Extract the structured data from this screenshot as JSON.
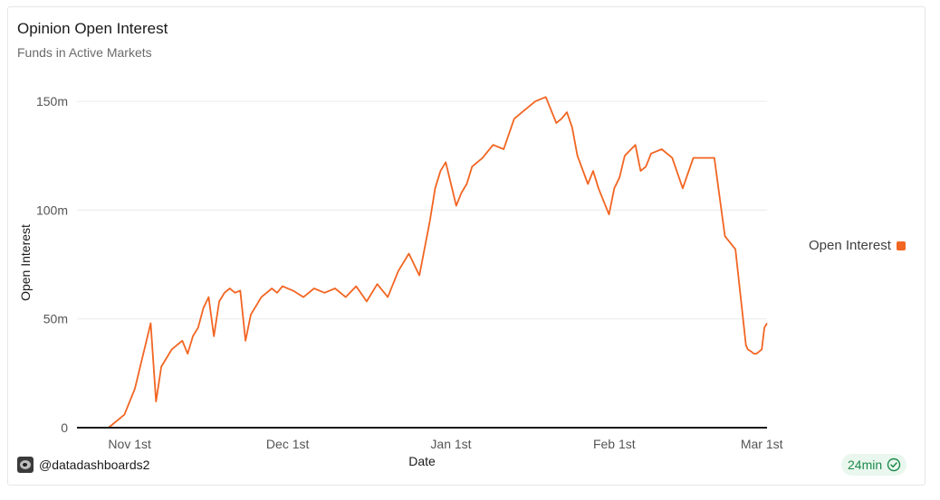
{
  "header": {
    "title": "Opinion Open Interest",
    "subtitle": "Funds in Active Markets"
  },
  "legend": {
    "label": "Open Interest",
    "color": "#f26522"
  },
  "footer": {
    "author": "@datadashboards2",
    "author_icon": "author-avatar-icon",
    "freshness": "24min",
    "freshness_icon": "check-circle-icon"
  },
  "colors": {
    "series": "#f26522",
    "grid": "#ececec",
    "axis": "#1a1a1a",
    "badge_bg": "#e9f7ee",
    "badge_text": "#1f8a4c"
  },
  "chart_data": {
    "type": "line",
    "xlabel": "Date",
    "ylabel": "Open Interest",
    "x_ticks": [
      {
        "label": "Nov 1st",
        "date": "2025-11-01"
      },
      {
        "label": "Dec 1st",
        "date": "2025-12-01"
      },
      {
        "label": "Jan 1st",
        "date": "2026-01-01"
      },
      {
        "label": "Feb 1st",
        "date": "2026-02-01"
      },
      {
        "label": "Mar 1st",
        "date": "2026-03-01"
      }
    ],
    "y_ticks": [
      {
        "label": "0",
        "value": 0
      },
      {
        "label": "50m",
        "value": 50
      },
      {
        "label": "100m",
        "value": 100
      },
      {
        "label": "150m",
        "value": 150
      }
    ],
    "xlim": [
      "2025-10-22",
      "2026-03-02"
    ],
    "ylim": [
      0,
      160
    ],
    "grid": true,
    "legend_position": "right",
    "series": [
      {
        "name": "Open Interest",
        "x": [
          "2025-10-22",
          "2025-10-24",
          "2025-10-26",
          "2025-10-28",
          "2025-10-30",
          "2025-10-31",
          "2025-11-02",
          "2025-11-03",
          "2025-11-04",
          "2025-11-05",
          "2025-11-06",
          "2025-11-07",
          "2025-11-08",
          "2025-11-09",
          "2025-11-10",
          "2025-11-11",
          "2025-11-12",
          "2025-11-13",
          "2025-11-14",
          "2025-11-15",
          "2025-11-16",
          "2025-11-17",
          "2025-11-18",
          "2025-11-19",
          "2025-11-20",
          "2025-11-21",
          "2025-11-22",
          "2025-11-23",
          "2025-11-24",
          "2025-11-25",
          "2025-11-26",
          "2025-11-27",
          "2025-11-28",
          "2025-11-29",
          "2025-11-30",
          "2025-12-02",
          "2025-12-04",
          "2025-12-06",
          "2025-12-08",
          "2025-12-10",
          "2025-12-12",
          "2025-12-14",
          "2025-12-16",
          "2025-12-18",
          "2025-12-20",
          "2025-12-22",
          "2025-12-24",
          "2025-12-26",
          "2025-12-28",
          "2025-12-29",
          "2025-12-30",
          "2025-12-31",
          "2026-01-01",
          "2026-01-02",
          "2026-01-03",
          "2026-01-04",
          "2026-01-05",
          "2026-01-07",
          "2026-01-09",
          "2026-01-11",
          "2026-01-13",
          "2026-01-15",
          "2026-01-17",
          "2026-01-19",
          "2026-01-21",
          "2026-01-22",
          "2026-01-23",
          "2026-01-24",
          "2026-01-25",
          "2026-01-27",
          "2026-01-28",
          "2026-01-29",
          "2026-01-31",
          "2026-02-01",
          "2026-02-02",
          "2026-02-03",
          "2026-02-05",
          "2026-02-06",
          "2026-02-07",
          "2026-02-08",
          "2026-02-10",
          "2026-02-12",
          "2026-02-14",
          "2026-02-16",
          "2026-02-18",
          "2026-02-20",
          "2026-02-22",
          "2026-02-24",
          "2026-02-25",
          "2026-02-26",
          "2026-02-26T08:00",
          "2026-02-27",
          "2026-02-27T12:00",
          "2026-02-28",
          "2026-03-01",
          "2026-03-01T12:00",
          "2026-03-02"
        ],
        "values": [
          0,
          0,
          0,
          0,
          4,
          6,
          18,
          28,
          38,
          48,
          12,
          28,
          32,
          36,
          38,
          40,
          34,
          42,
          46,
          55,
          60,
          42,
          58,
          62,
          64,
          62,
          63,
          40,
          52,
          56,
          60,
          62,
          64,
          62,
          65,
          63,
          60,
          64,
          62,
          64,
          60,
          65,
          58,
          66,
          60,
          72,
          80,
          70,
          95,
          110,
          118,
          122,
          112,
          102,
          108,
          112,
          120,
          124,
          130,
          128,
          142,
          146,
          150,
          152,
          140,
          142,
          145,
          138,
          125,
          112,
          118,
          110,
          98,
          110,
          115,
          125,
          130,
          118,
          120,
          126,
          128,
          124,
          110,
          124,
          124,
          124,
          88,
          82,
          60,
          38,
          36,
          35,
          34,
          34,
          36,
          46,
          48
        ]
      }
    ]
  }
}
